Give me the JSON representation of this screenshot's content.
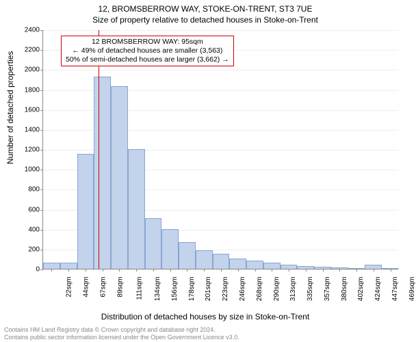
{
  "title_main": "12, BROMSBERROW WAY, STOKE-ON-TRENT, ST3 7UE",
  "title_sub": "Size of property relative to detached houses in Stoke-on-Trent",
  "y_axis_label": "Number of detached properties",
  "x_axis_label": "Distribution of detached houses by size in Stoke-on-Trent",
  "footer_line1": "Contains HM Land Registry data © Crown copyright and database right 2024.",
  "footer_line2": "Contains public sector information licensed under the Open Government Licence v3.0.",
  "chart": {
    "type": "histogram",
    "background_color": "#ffffff",
    "axis_color": "#888888",
    "grid_color": "#eeeeee",
    "bar_fill": "#c3d3ec",
    "bar_stroke": "#88a5d2",
    "bar_stroke_width": 1,
    "marker_color": "#cc0000",
    "info_box_border": "#cc0000",
    "label_fontsize": 12,
    "tick_fontsize": 10,
    "ylim": [
      0,
      2400
    ],
    "ytick_step": 200,
    "x_categories": [
      "22sqm",
      "44sqm",
      "67sqm",
      "89sqm",
      "111sqm",
      "134sqm",
      "156sqm",
      "178sqm",
      "201sqm",
      "223sqm",
      "246sqm",
      "268sqm",
      "290sqm",
      "313sqm",
      "335sqm",
      "357sqm",
      "380sqm",
      "402sqm",
      "424sqm",
      "447sqm",
      "469sqm"
    ],
    "values": [
      60,
      60,
      1150,
      1930,
      1830,
      1200,
      510,
      400,
      270,
      185,
      150,
      100,
      80,
      60,
      40,
      30,
      20,
      15,
      10,
      40,
      5
    ],
    "marker_index": 3,
    "info_box": {
      "line1": "12 BROMSBERROW WAY: 95sqm",
      "line2": "← 49% of detached houses are smaller (3,563)",
      "line3": "50% of semi-detached houses are larger (3,662) →"
    }
  }
}
